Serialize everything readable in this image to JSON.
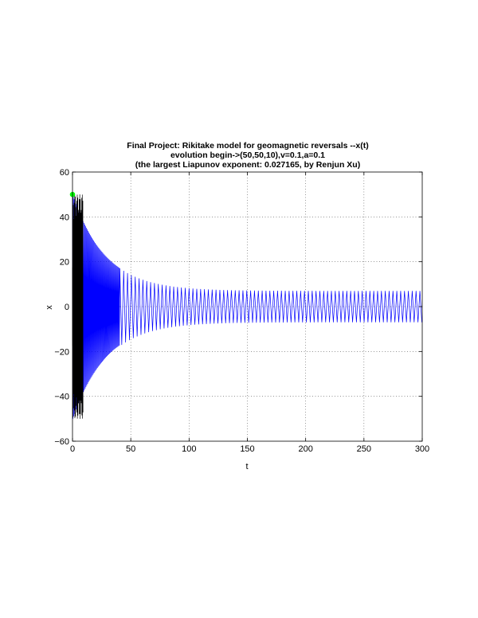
{
  "chart_data": {
    "type": "line",
    "title_lines": [
      "Final Project: Rikitake model for geomagnetic reversals --x(t)",
      "evolution begin->(50,50,10),v=0.1,a=0.1",
      "(the largest Liapunov exponent: 0.027165, by Renjun Xu)"
    ],
    "xlabel": "t",
    "ylabel": "x",
    "xlim": [
      0,
      300
    ],
    "ylim": [
      -60,
      60
    ],
    "xticks": [
      "0",
      "50",
      "100",
      "150",
      "200",
      "250",
      "300"
    ],
    "yticks": [
      "60",
      "40",
      "20",
      "0",
      "−20",
      "−40",
      "−60"
    ],
    "grid": true,
    "series": [
      {
        "color": "#0000ff",
        "envelope_start": 50,
        "envelope_final": 7,
        "decay_time_constant": 28,
        "t_range": [
          0,
          300
        ]
      },
      {
        "color": "#000000",
        "t_range": [
          0,
          9
        ],
        "amplitude": 50
      }
    ],
    "start_marker": {
      "t": 0,
      "x": 50,
      "color": "#00ff00"
    }
  }
}
